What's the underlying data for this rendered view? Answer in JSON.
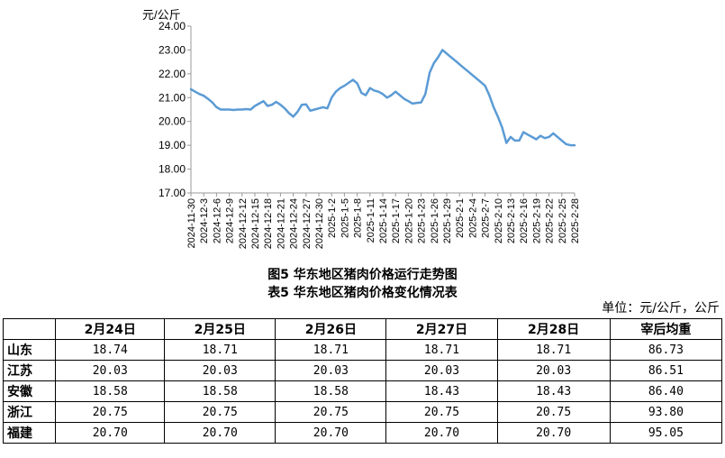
{
  "chart_data": {
    "type": "line",
    "ylabel": "元/公斤",
    "ylim": [
      17,
      24
    ],
    "yticks": [
      "17.00",
      "18.00",
      "19.00",
      "20.00",
      "21.00",
      "22.00",
      "23.00",
      "24.00"
    ],
    "xtick_labels": [
      "2024-11-30",
      "2024-12-3",
      "2024-12-6",
      "2024-12-9",
      "2024-12-12",
      "2024-12-15",
      "2024-12-18",
      "2024-12-21",
      "2024-12-24",
      "2024-12-27",
      "2024-12-30",
      "2025-1-2",
      "2025-1-5",
      "2025-1-8",
      "2025-1-11",
      "2025-1-14",
      "2025-1-17",
      "2025-1-20",
      "2025-1-23",
      "2025-1-26",
      "2025-1-29",
      "2025-2-1",
      "2025-2-4",
      "2025-2-7",
      "2025-2-10",
      "2025-2-13",
      "2025-2-16",
      "2025-2-19",
      "2025-2-22",
      "2025-2-25",
      "2025-2-28"
    ],
    "color": "#5B9BD5",
    "series": [
      {
        "x": [
          "2024-11-30",
          "2024-12-1",
          "2024-12-2",
          "2024-12-3",
          "2024-12-4",
          "2024-12-5",
          "2024-12-6",
          "2024-12-7",
          "2024-12-8",
          "2024-12-9",
          "2024-12-10",
          "2024-12-11",
          "2024-12-12",
          "2024-12-13",
          "2024-12-14",
          "2024-12-15",
          "2024-12-16",
          "2024-12-17",
          "2024-12-18",
          "2024-12-19",
          "2024-12-20",
          "2024-12-21",
          "2024-12-22",
          "2024-12-23",
          "2024-12-24",
          "2024-12-25",
          "2024-12-26",
          "2024-12-27",
          "2024-12-28",
          "2024-12-29",
          "2024-12-30",
          "2024-12-31",
          "2025-1-1",
          "2025-1-2",
          "2025-1-3",
          "2025-1-4",
          "2025-1-5",
          "2025-1-6",
          "2025-1-7",
          "2025-1-8",
          "2025-1-9",
          "2025-1-10",
          "2025-1-11",
          "2025-1-12",
          "2025-1-13",
          "2025-1-14",
          "2025-1-15",
          "2025-1-16",
          "2025-1-17",
          "2025-1-18",
          "2025-1-19",
          "2025-1-20",
          "2025-1-21",
          "2025-1-22",
          "2025-1-23",
          "2025-1-24",
          "2025-1-25",
          "2025-1-26",
          "2025-1-27",
          "2025-1-28",
          "2025-1-29",
          "2025-1-30",
          "2025-1-31",
          "2025-2-1",
          "2025-2-2",
          "2025-2-3",
          "2025-2-4",
          "2025-2-5",
          "2025-2-6",
          "2025-2-7",
          "2025-2-8",
          "2025-2-9",
          "2025-2-10",
          "2025-2-11",
          "2025-2-12",
          "2025-2-13",
          "2025-2-14",
          "2025-2-15",
          "2025-2-16",
          "2025-2-17",
          "2025-2-18",
          "2025-2-19",
          "2025-2-20",
          "2025-2-21",
          "2025-2-22",
          "2025-2-23",
          "2025-2-24",
          "2025-2-25",
          "2025-2-26",
          "2025-2-27",
          "2025-2-28"
        ],
        "values": [
          21.35,
          21.25,
          21.15,
          21.08,
          20.95,
          20.8,
          20.6,
          20.5,
          20.5,
          20.5,
          20.48,
          20.5,
          20.5,
          20.52,
          20.5,
          20.65,
          20.75,
          20.85,
          20.65,
          20.7,
          20.82,
          20.7,
          20.55,
          20.35,
          20.2,
          20.4,
          20.7,
          20.72,
          20.45,
          20.5,
          20.55,
          20.6,
          20.55,
          21.0,
          21.25,
          21.4,
          21.5,
          21.62,
          21.75,
          21.6,
          21.2,
          21.1,
          21.4,
          21.3,
          21.25,
          21.15,
          21.0,
          21.1,
          21.25,
          21.1,
          20.95,
          20.85,
          20.75,
          20.78,
          20.8,
          21.15,
          22.05,
          22.45,
          22.7,
          23.0,
          22.85,
          22.7,
          22.55,
          22.4,
          22.25,
          22.1,
          21.95,
          21.8,
          21.65,
          21.5,
          21.1,
          20.6,
          20.2,
          19.75,
          19.1,
          19.35,
          19.2,
          19.2,
          19.55,
          19.45,
          19.35,
          19.25,
          19.4,
          19.3,
          19.35,
          19.5,
          19.35,
          19.2,
          19.05,
          19.0,
          19.0
        ]
      }
    ]
  },
  "captions": {
    "figure": "图5  华东地区猪肉价格运行走势图",
    "table": "表5  华东地区猪肉价格变化情况表"
  },
  "unit_note": "单位：元/公斤，公斤",
  "table": {
    "headers": [
      "",
      "2月24日",
      "2月25日",
      "2月26日",
      "2月27日",
      "2月28日",
      "宰后均重"
    ],
    "rows": [
      [
        "山东",
        "18.74",
        "18.71",
        "18.71",
        "18.71",
        "18.71",
        "86.73"
      ],
      [
        "江苏",
        "20.03",
        "20.03",
        "20.03",
        "20.03",
        "20.03",
        "86.51"
      ],
      [
        "安徽",
        "18.58",
        "18.58",
        "18.58",
        "18.43",
        "18.43",
        "86.40"
      ],
      [
        "浙江",
        "20.75",
        "20.75",
        "20.75",
        "20.75",
        "20.75",
        "93.80"
      ],
      [
        "福建",
        "20.70",
        "20.70",
        "20.70",
        "20.70",
        "20.70",
        "95.05"
      ]
    ]
  }
}
